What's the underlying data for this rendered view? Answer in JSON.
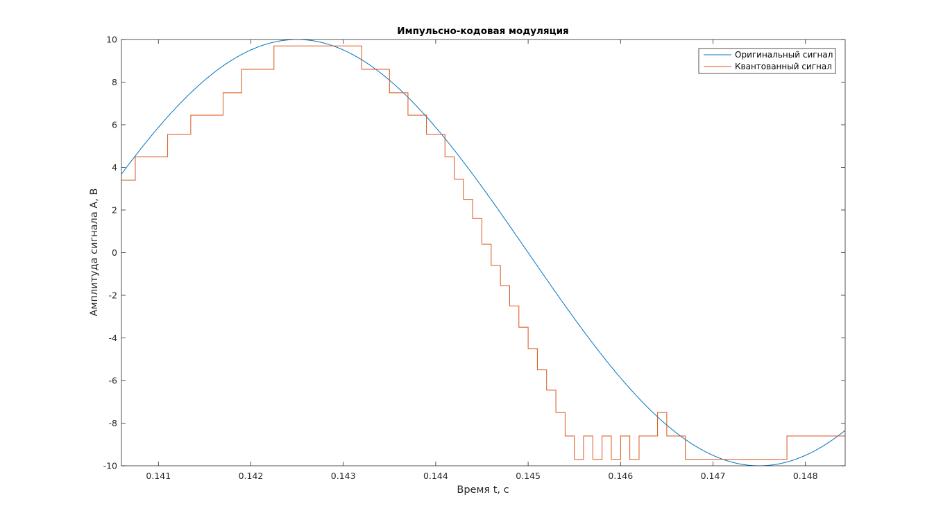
{
  "chart_data": {
    "type": "line",
    "title": "Импульсно-кодовая модуляция",
    "xlabel": "Время t, с",
    "ylabel": "Амплитуда сигнала A, В",
    "xlim": [
      0.1406,
      0.14843
    ],
    "ylim": [
      -10,
      10
    ],
    "xticks": [
      0.141,
      0.142,
      0.143,
      0.144,
      0.145,
      0.146,
      0.147,
      0.148
    ],
    "xtick_labels": [
      "0.141",
      "0.142",
      "0.143",
      "0.144",
      "0.145",
      "0.146",
      "0.147",
      "0.148"
    ],
    "yticks": [
      -10,
      -8,
      -6,
      -4,
      -2,
      0,
      2,
      4,
      6,
      8,
      10
    ],
    "ytick_labels": [
      "-10",
      "-8",
      "-6",
      "-4",
      "-2",
      "0",
      "2",
      "4",
      "6",
      "8",
      "10"
    ],
    "grid": false,
    "box": true,
    "legend_position": "top-right",
    "series": [
      {
        "name": "Оригинальный сигнал",
        "color": "#0072BD",
        "style": "sine",
        "amplitude": 10,
        "frequency_hz": 100,
        "peak_time": 0.1425
      },
      {
        "name": "Квантованный сигнал",
        "color": "#D95319",
        "style": "step",
        "x": [
          0.1406,
          0.14075,
          0.1411,
          0.14135,
          0.1417,
          0.1419,
          0.14225,
          0.1432,
          0.1435,
          0.1437,
          0.1439,
          0.1441,
          0.1442,
          0.1443,
          0.1444,
          0.1445,
          0.1446,
          0.1447,
          0.1448,
          0.1449,
          0.145,
          0.1451,
          0.1452,
          0.1453,
          0.1454,
          0.1455,
          0.1456,
          0.1457,
          0.1458,
          0.1459,
          0.146,
          0.1461,
          0.1462,
          0.1464,
          0.1465,
          0.1467,
          0.147,
          0.1478,
          0.1481
        ],
        "y": [
          3.4,
          4.5,
          5.55,
          6.45,
          7.5,
          8.6,
          9.7,
          8.6,
          7.5,
          6.45,
          5.55,
          4.5,
          3.45,
          2.5,
          1.6,
          0.4,
          -0.6,
          -1.55,
          -2.5,
          -3.5,
          -4.5,
          -5.5,
          -6.45,
          -7.5,
          -8.6,
          -9.7,
          -8.6,
          -9.7,
          -8.6,
          -9.7,
          -8.6,
          -9.7,
          -8.6,
          -7.5,
          -8.6,
          -9.7,
          -9.7,
          -8.6,
          -8.6
        ],
        "levels": [
          -9.7,
          -8.6,
          -7.5,
          -6.45,
          -5.5,
          -4.5,
          -3.5,
          -2.5,
          -1.55,
          -0.6,
          0.4,
          1.6,
          2.5,
          3.45,
          4.5,
          5.55,
          6.45,
          7.5,
          8.6,
          9.7
        ]
      }
    ]
  }
}
